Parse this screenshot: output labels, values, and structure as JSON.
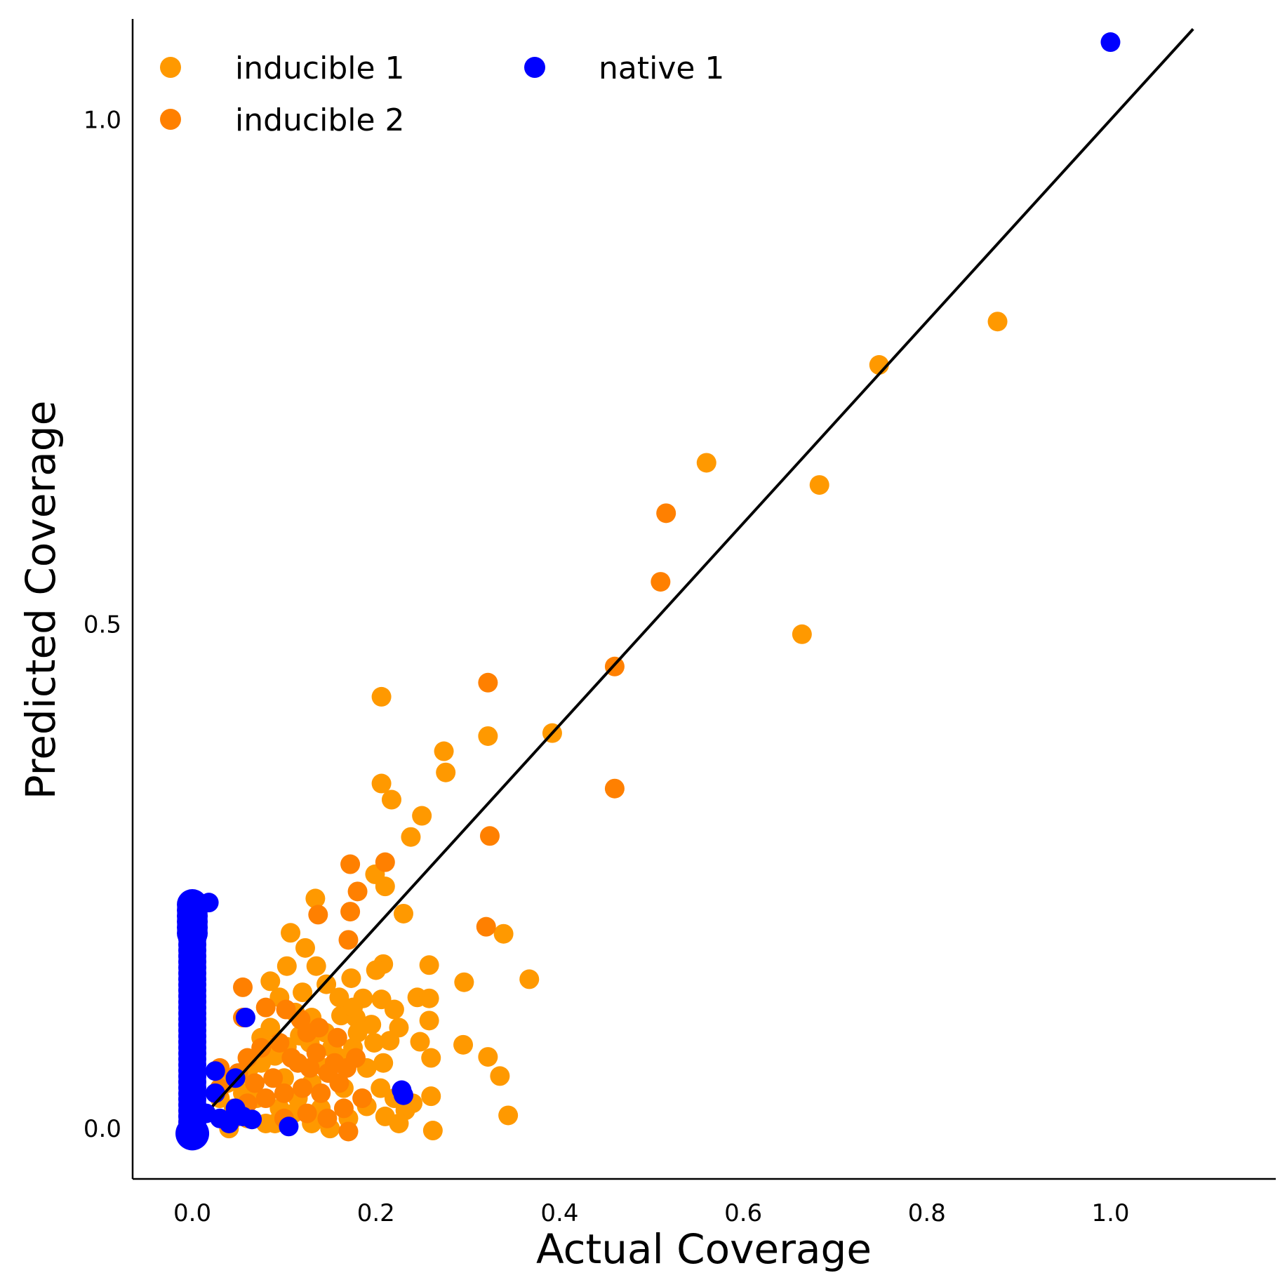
{
  "chart_data": {
    "type": "scatter",
    "title": "",
    "xlabel": "Actual Coverage",
    "ylabel": "Predicted Coverage",
    "xlim": [
      -0.065,
      1.18
    ],
    "ylim": [
      -0.05,
      1.1
    ],
    "xticks": [
      0.0,
      0.2,
      0.4,
      0.6,
      0.8,
      1.0
    ],
    "xtick_labels": [
      "0.0",
      "0.2",
      "0.4",
      "0.6",
      "0.8",
      "1.0"
    ],
    "yticks": [
      0.0,
      0.5,
      1.0
    ],
    "ytick_labels": [
      "0.0",
      "0.5",
      "1.0"
    ],
    "grid": false,
    "legend_position": "top-left",
    "reference_line": {
      "x": [
        0.022,
        1.09
      ],
      "y": [
        0.022,
        1.09
      ],
      "color": "#000000"
    },
    "series": [
      {
        "name": "inducible 1",
        "color": "#FF9900",
        "points": [
          [
            0.877,
            0.8
          ],
          [
            0.748,
            0.757
          ],
          [
            0.56,
            0.66
          ],
          [
            0.683,
            0.638
          ],
          [
            0.664,
            0.49
          ],
          [
            0.392,
            0.392
          ],
          [
            0.322,
            0.389
          ],
          [
            0.274,
            0.374
          ],
          [
            0.206,
            0.428
          ],
          [
            0.276,
            0.353
          ],
          [
            0.206,
            0.342
          ],
          [
            0.217,
            0.326
          ],
          [
            0.25,
            0.31
          ],
          [
            0.238,
            0.289
          ],
          [
            0.199,
            0.252
          ],
          [
            0.21,
            0.24
          ],
          [
            0.23,
            0.213
          ],
          [
            0.339,
            0.193
          ],
          [
            0.367,
            0.148
          ],
          [
            0.296,
            0.145
          ],
          [
            0.258,
            0.162
          ],
          [
            0.208,
            0.163
          ],
          [
            0.2,
            0.157
          ],
          [
            0.173,
            0.149
          ],
          [
            0.134,
            0.228
          ],
          [
            0.107,
            0.194
          ],
          [
            0.123,
            0.179
          ],
          [
            0.085,
            0.146
          ],
          [
            0.095,
            0.13
          ],
          [
            0.103,
            0.161
          ],
          [
            0.135,
            0.161
          ],
          [
            0.146,
            0.143
          ],
          [
            0.186,
            0.129
          ],
          [
            0.206,
            0.128
          ],
          [
            0.22,
            0.118
          ],
          [
            0.245,
            0.13
          ],
          [
            0.258,
            0.129
          ],
          [
            0.258,
            0.107
          ],
          [
            0.248,
            0.086
          ],
          [
            0.295,
            0.083
          ],
          [
            0.322,
            0.071
          ],
          [
            0.335,
            0.052
          ],
          [
            0.26,
            0.07
          ],
          [
            0.26,
            0.032
          ],
          [
            0.262,
            -0.002
          ],
          [
            0.344,
            0.013
          ],
          [
            0.215,
            0.087
          ],
          [
            0.208,
            0.065
          ],
          [
            0.195,
            0.103
          ],
          [
            0.178,
            0.11
          ],
          [
            0.162,
            0.112
          ],
          [
            0.145,
            0.095
          ],
          [
            0.13,
            0.11
          ],
          [
            0.117,
            0.092
          ],
          [
            0.103,
            0.081
          ],
          [
            0.09,
            0.072
          ],
          [
            0.075,
            0.065
          ],
          [
            0.062,
            0.06
          ],
          [
            0.048,
            0.05
          ],
          [
            0.038,
            0.045
          ],
          [
            0.03,
            0.03
          ],
          [
            0.045,
            0.02
          ],
          [
            0.06,
            0.01
          ],
          [
            0.08,
            0.005
          ],
          [
            0.095,
            0.02
          ],
          [
            0.115,
            0.03
          ],
          [
            0.13,
            0.045
          ],
          [
            0.145,
            0.06
          ],
          [
            0.16,
            0.07
          ],
          [
            0.175,
            0.08
          ],
          [
            0.19,
            0.06
          ],
          [
            0.205,
            0.04
          ],
          [
            0.22,
            0.03
          ],
          [
            0.232,
            0.018
          ],
          [
            0.24,
            0.025
          ],
          [
            0.21,
            0.012
          ],
          [
            0.19,
            0.022
          ],
          [
            0.17,
            0.01
          ],
          [
            0.15,
            0.0
          ],
          [
            0.13,
            0.005
          ],
          [
            0.11,
            0.015
          ],
          [
            0.09,
            0.005
          ],
          [
            0.07,
            0.03
          ],
          [
            0.055,
            0.035
          ],
          [
            0.04,
            0.0
          ],
          [
            0.112,
            0.115
          ],
          [
            0.128,
            0.085
          ],
          [
            0.152,
            0.08
          ],
          [
            0.18,
            0.095
          ],
          [
            0.198,
            0.085
          ],
          [
            0.225,
            0.1
          ],
          [
            0.165,
            0.04
          ],
          [
            0.14,
            0.02
          ],
          [
            0.1,
            0.05
          ],
          [
            0.085,
            0.1
          ],
          [
            0.075,
            0.09
          ],
          [
            0.12,
            0.135
          ],
          [
            0.16,
            0.13
          ],
          [
            0.175,
            0.12
          ],
          [
            0.225,
            0.005
          ]
        ]
      },
      {
        "name": "inducible 2",
        "color": "#FF8000",
        "points": [
          [
            0.516,
            0.61
          ],
          [
            0.51,
            0.542
          ],
          [
            0.46,
            0.458
          ],
          [
            0.322,
            0.442
          ],
          [
            0.46,
            0.337
          ],
          [
            0.324,
            0.29
          ],
          [
            0.32,
            0.2
          ],
          [
            0.172,
            0.262
          ],
          [
            0.21,
            0.264
          ],
          [
            0.18,
            0.235
          ],
          [
            0.172,
            0.215
          ],
          [
            0.137,
            0.212
          ],
          [
            0.17,
            0.187
          ],
          [
            0.055,
            0.14
          ],
          [
            0.055,
            0.11
          ],
          [
            0.08,
            0.12
          ],
          [
            0.102,
            0.118
          ],
          [
            0.118,
            0.108
          ],
          [
            0.138,
            0.1
          ],
          [
            0.158,
            0.09
          ],
          [
            0.178,
            0.07
          ],
          [
            0.168,
            0.06
          ],
          [
            0.148,
            0.055
          ],
          [
            0.128,
            0.06
          ],
          [
            0.108,
            0.07
          ],
          [
            0.088,
            0.05
          ],
          [
            0.068,
            0.045
          ],
          [
            0.05,
            0.055
          ],
          [
            0.03,
            0.06
          ],
          [
            0.03,
            0.04
          ],
          [
            0.06,
            0.025
          ],
          [
            0.08,
            0.03
          ],
          [
            0.1,
            0.035
          ],
          [
            0.12,
            0.04
          ],
          [
            0.14,
            0.035
          ],
          [
            0.16,
            0.045
          ],
          [
            0.17,
            -0.003
          ],
          [
            0.147,
            0.01
          ],
          [
            0.125,
            0.015
          ],
          [
            0.1,
            0.01
          ],
          [
            0.115,
            0.065
          ],
          [
            0.135,
            0.075
          ],
          [
            0.155,
            0.065
          ],
          [
            0.095,
            0.085
          ],
          [
            0.075,
            0.08
          ],
          [
            0.125,
            0.095
          ],
          [
            0.165,
            0.02
          ],
          [
            0.185,
            0.03
          ],
          [
            0.06,
            0.07
          ],
          [
            0.045,
            0.01
          ]
        ]
      },
      {
        "name": "native 1",
        "color": "#0000FF",
        "points": [
          [
            1.0,
            1.077
          ],
          [
            0.058,
            0.11
          ],
          [
            0.228,
            0.038
          ],
          [
            0.23,
            0.033
          ],
          [
            0.047,
            0.05
          ],
          [
            0.025,
            0.057
          ],
          [
            0.047,
            0.02
          ],
          [
            0.065,
            0.009
          ],
          [
            0.105,
            0.002
          ],
          [
            0.025,
            0.035
          ],
          [
            0.018,
            0.224
          ],
          [
            0.015,
            0.015
          ],
          [
            0.03,
            0.01
          ],
          [
            0.04,
            0.005
          ],
          [
            0.055,
            0.012
          ]
        ]
      }
    ],
    "native_column": {
      "x": 0.0,
      "y_from": -0.005,
      "y_to": 0.222,
      "color": "#0000FF"
    }
  }
}
